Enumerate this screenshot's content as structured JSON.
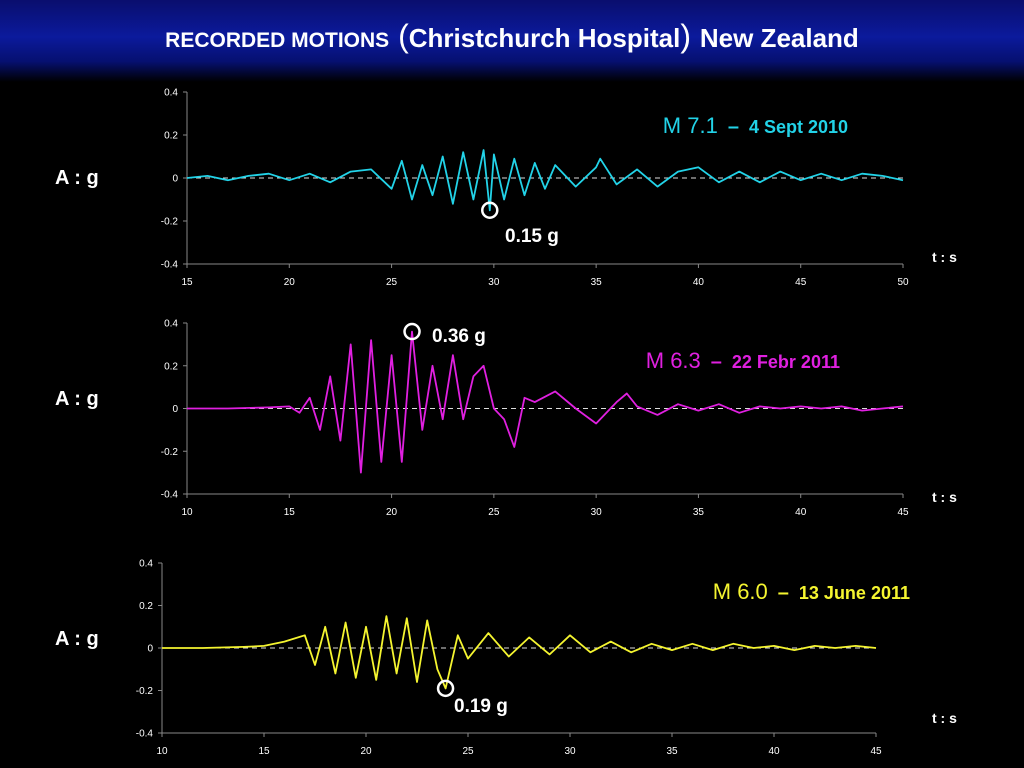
{
  "title": {
    "part1": "RECORDED  MOTIONS",
    "open_paren": "(",
    "part2": "Christchurch  Hospital",
    "close_paren": ")",
    "part3": "New Zealand"
  },
  "chart_data": [
    {
      "type": "line",
      "magnitude": "M 7.1",
      "dash": "–",
      "date": "4  Sept  2010",
      "color": "#22d3e8",
      "ylabel": "A : g",
      "xlabel": "t : s",
      "xlim": [
        15,
        50
      ],
      "ylim": [
        -0.4,
        0.4
      ],
      "xticks": [
        "15",
        "20",
        "25",
        "30",
        "35",
        "40",
        "45",
        "50"
      ],
      "yticks": [
        "0.4",
        "0.2",
        "0",
        "-0.2",
        "-0.4"
      ],
      "peak": {
        "label": "0.15 g",
        "t": 29.8,
        "a": -0.15
      },
      "series": [
        {
          "x": [
            15,
            16,
            17,
            18,
            19,
            20,
            21,
            22,
            23,
            24,
            25,
            25.5,
            26,
            26.5,
            27,
            27.5,
            28,
            28.5,
            29,
            29.5,
            29.8,
            30,
            30.5,
            31,
            31.5,
            32,
            32.5,
            33,
            34,
            35,
            35.2,
            36,
            37,
            38,
            39,
            40,
            41,
            42,
            43,
            44,
            45,
            46,
            47,
            48,
            49,
            50
          ],
          "a": [
            0,
            0.01,
            -0.01,
            0.01,
            0.02,
            -0.01,
            0.02,
            -0.02,
            0.03,
            0.04,
            -0.05,
            0.08,
            -0.1,
            0.06,
            -0.08,
            0.1,
            -0.12,
            0.12,
            -0.1,
            0.13,
            -0.15,
            0.11,
            -0.1,
            0.09,
            -0.08,
            0.07,
            -0.05,
            0.06,
            -0.04,
            0.05,
            0.09,
            -0.03,
            0.04,
            -0.04,
            0.03,
            0.05,
            -0.02,
            0.03,
            -0.02,
            0.03,
            -0.01,
            0.02,
            -0.01,
            0.02,
            0.01,
            -0.01
          ]
        }
      ]
    },
    {
      "type": "line",
      "magnitude": "M 6.3",
      "dash": "–",
      "date": "22  Febr  2011",
      "color": "#e020e0",
      "ylabel": "A : g",
      "xlabel": "t : s",
      "xlim": [
        10,
        45
      ],
      "ylim": [
        -0.4,
        0.4
      ],
      "xticks": [
        "10",
        "15",
        "20",
        "25",
        "30",
        "35",
        "40",
        "45"
      ],
      "yticks": [
        "0.4",
        "0.2",
        "0",
        "-0.2",
        "-0.4"
      ],
      "peak": {
        "label": "0.36 g",
        "t": 21.0,
        "a": 0.36
      },
      "series": [
        {
          "x": [
            10,
            12,
            14,
            15,
            15.5,
            16,
            16.5,
            17,
            17.5,
            18,
            18.5,
            19,
            19.5,
            20,
            20.5,
            21,
            21.5,
            22,
            22.5,
            23,
            23.5,
            24,
            24.5,
            25,
            25.5,
            26,
            26.5,
            27,
            28,
            29,
            30,
            31,
            31.5,
            32,
            33,
            34,
            35,
            36,
            37,
            38,
            39,
            40,
            41,
            42,
            43,
            44,
            45
          ],
          "a": [
            0,
            0,
            0.005,
            0.01,
            -0.02,
            0.05,
            -0.1,
            0.15,
            -0.15,
            0.3,
            -0.3,
            0.32,
            -0.25,
            0.25,
            -0.25,
            0.36,
            -0.1,
            0.2,
            -0.05,
            0.25,
            -0.05,
            0.15,
            0.2,
            0,
            -0.05,
            -0.18,
            0.05,
            0.03,
            0.08,
            0,
            -0.07,
            0.03,
            0.07,
            0.01,
            -0.03,
            0.02,
            -0.01,
            0.02,
            -0.02,
            0.01,
            0,
            0.01,
            0,
            0.01,
            -0.01,
            0,
            0.01
          ]
        }
      ]
    },
    {
      "type": "line",
      "magnitude": "M 6.0",
      "dash": "–",
      "date": "13  June  2011",
      "color": "#f5f530",
      "ylabel": "A : g",
      "xlabel": "t : s",
      "xlim": [
        10,
        45
      ],
      "ylim": [
        -0.4,
        0.4
      ],
      "xticks": [
        "10",
        "15",
        "20",
        "25",
        "30",
        "35",
        "40",
        "45"
      ],
      "yticks": [
        "0.4",
        "0.2",
        "0",
        "-0.2",
        "-0.4"
      ],
      "peak": {
        "label": "0.19 g",
        "t": 23.9,
        "a": -0.19
      },
      "series": [
        {
          "x": [
            10,
            12,
            14,
            15,
            16,
            17,
            17.5,
            18,
            18.5,
            19,
            19.5,
            20,
            20.5,
            21,
            21.5,
            22,
            22.5,
            23,
            23.5,
            23.9,
            24.5,
            25,
            26,
            27,
            28,
            29,
            30,
            31,
            32,
            33,
            34,
            35,
            36,
            37,
            38,
            39,
            40,
            41,
            42,
            43,
            44,
            45
          ],
          "a": [
            0,
            0,
            0.005,
            0.01,
            0.03,
            0.06,
            -0.08,
            0.1,
            -0.12,
            0.12,
            -0.14,
            0.1,
            -0.15,
            0.15,
            -0.12,
            0.14,
            -0.16,
            0.13,
            -0.1,
            -0.19,
            0.06,
            -0.05,
            0.07,
            -0.04,
            0.05,
            -0.03,
            0.06,
            -0.02,
            0.03,
            -0.02,
            0.02,
            -0.01,
            0.02,
            -0.01,
            0.02,
            0,
            0.01,
            -0.01,
            0.01,
            0,
            0.01,
            0
          ]
        }
      ]
    }
  ]
}
